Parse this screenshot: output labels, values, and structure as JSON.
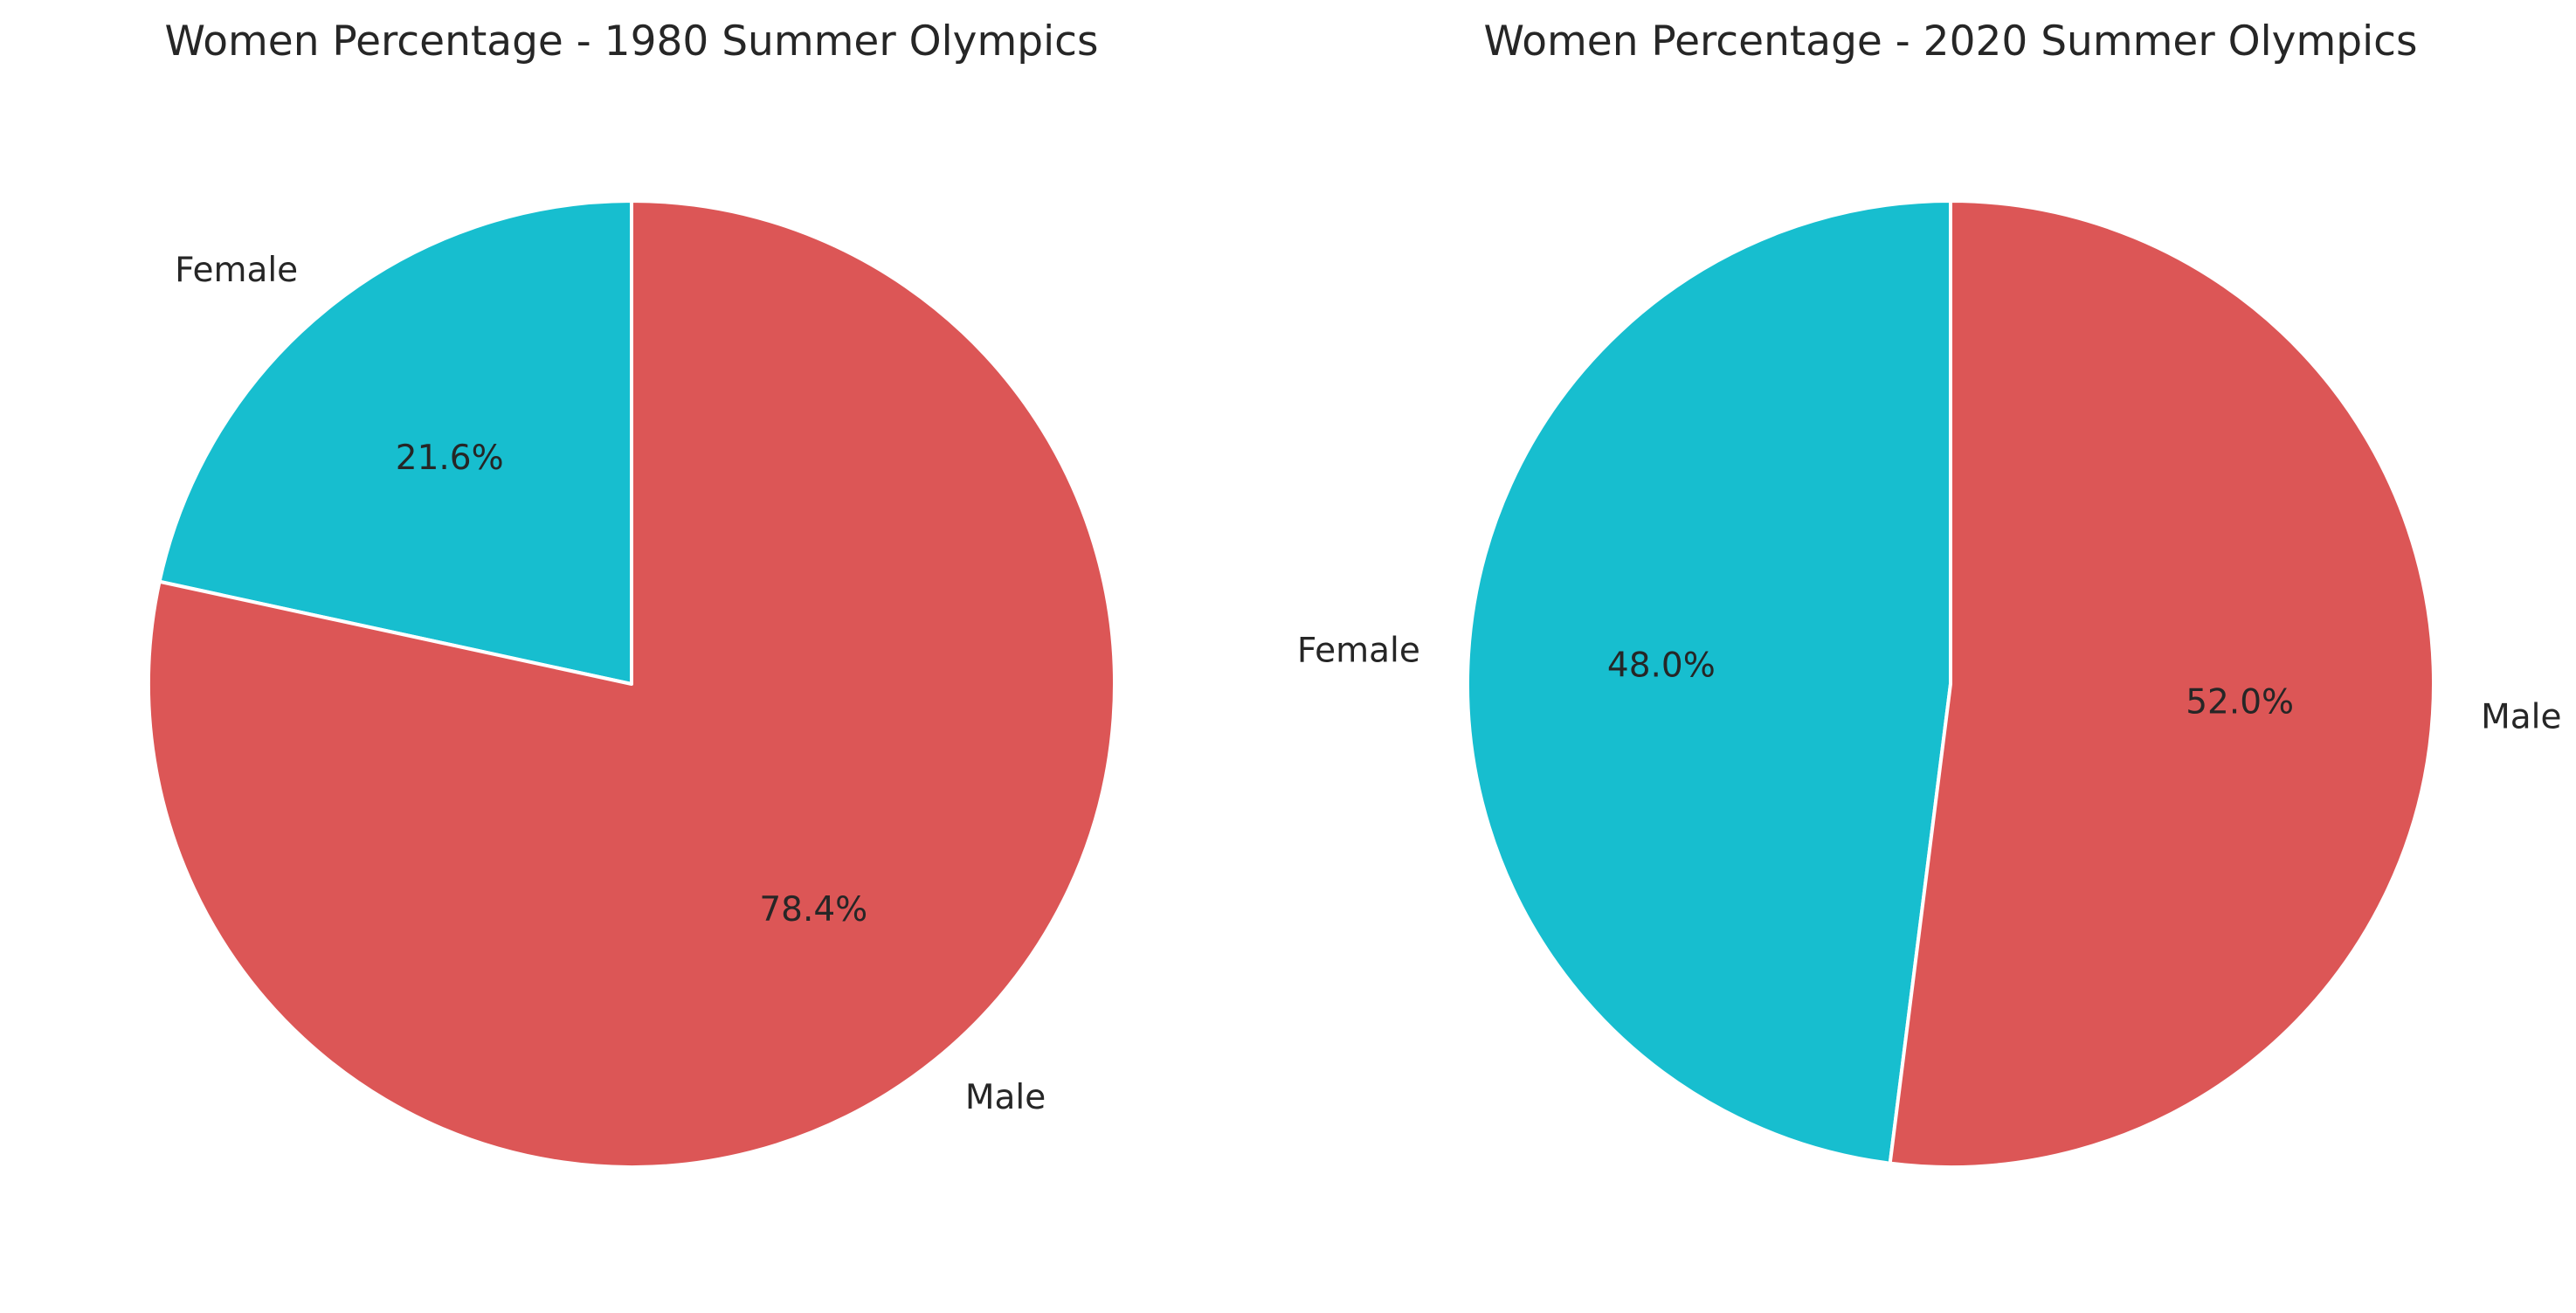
{
  "chart_data": [
    {
      "type": "pie",
      "title": "Women Percentage - 1980 Summer Olympics",
      "labels": [
        "Female",
        "Male"
      ],
      "values": [
        21.6,
        78.4
      ],
      "percent_labels": [
        "21.6%",
        "78.4%"
      ],
      "colors": [
        "#17becf",
        "#dc5656"
      ],
      "start_angle_deg": 90,
      "direction": "counterclockwise",
      "legend": "none"
    },
    {
      "type": "pie",
      "title": "Women Percentage - 2020 Summer Olympics",
      "labels": [
        "Female",
        "Male"
      ],
      "values": [
        48.0,
        52.0
      ],
      "percent_labels": [
        "48.0%",
        "52.0%"
      ],
      "colors": [
        "#17becf",
        "#dc5656"
      ],
      "start_angle_deg": 90,
      "direction": "counterclockwise",
      "legend": "none"
    }
  ]
}
